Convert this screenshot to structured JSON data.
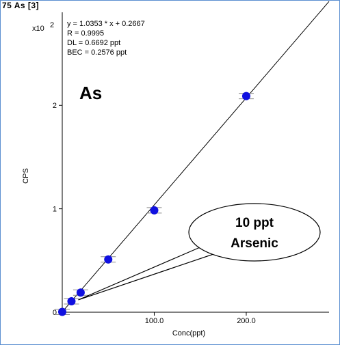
{
  "chart_data": {
    "type": "scatter",
    "title": "75 As [3]",
    "xlabel": "Conc(ppt)",
    "ylabel": "CPS",
    "y_multiplier_label": "x10",
    "y_multiplier_exp": "2",
    "xlim": [
      0,
      290
    ],
    "ylim": [
      0,
      2.9
    ],
    "x_ticks": [
      {
        "value": 100,
        "label": "100.0"
      },
      {
        "value": 200,
        "label": "200.0"
      }
    ],
    "y_ticks": [
      {
        "value": 0,
        "label": "0"
      },
      {
        "value": 1,
        "label": "1"
      },
      {
        "value": 2,
        "label": "2"
      }
    ],
    "element_label": "As",
    "annotations": [
      "y = 1.0353 * x  + 0.2667",
      "R  =  0.9995",
      "DL = 0.6692 ppt",
      "BEC = 0.2576 ppt"
    ],
    "fit": {
      "slope": 1.0353,
      "intercept": 0.2667
    },
    "series": [
      {
        "points": [
          {
            "x": 0,
            "y": 0.003
          },
          {
            "x": 10,
            "y": 0.106
          },
          {
            "x": 20,
            "y": 0.19
          },
          {
            "x": 50,
            "y": 0.51
          },
          {
            "x": 100,
            "y": 0.985
          },
          {
            "x": 200,
            "y": 2.09
          }
        ]
      }
    ],
    "callout": {
      "line1": "10 ppt",
      "line2": "Arsenic",
      "target_x": 10,
      "target_y": 0.106
    },
    "colors": {
      "marker": "#1010e0",
      "line": "#000000",
      "frame": "#5a8ed0"
    }
  }
}
